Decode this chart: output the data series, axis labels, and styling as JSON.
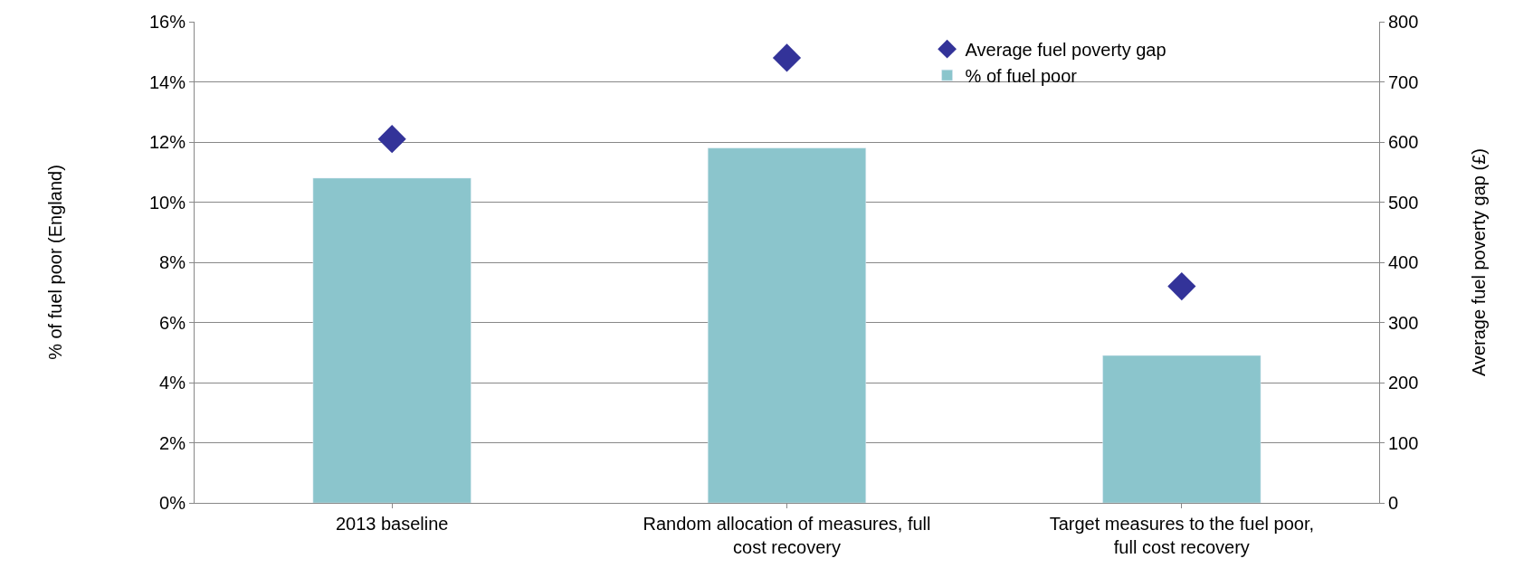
{
  "chart_data": {
    "type": "bar",
    "categories": [
      "2013 baseline",
      "Random allocation of measures, full cost recovery",
      "Target measures to the fuel poor, full cost recovery"
    ],
    "series": [
      {
        "name": "% of fuel poor",
        "color": "#8bc5cc",
        "values": [
          10.8,
          11.8,
          4.9
        ]
      },
      {
        "name": "Average fuel poverty gap",
        "type": "scatter",
        "axis": "y2",
        "color": "#333399",
        "marker": "diamond",
        "values": [
          605,
          740,
          360
        ]
      }
    ],
    "ylabel": "% of fuel poor (England)",
    "y2label": "Average fuel poverty gap (£)",
    "ylim": [
      0,
      16
    ],
    "yticks": [
      {
        "value": 0,
        "label": "0%"
      },
      {
        "value": 2,
        "label": "2%"
      },
      {
        "value": 4,
        "label": "4%"
      },
      {
        "value": 6,
        "label": "6%"
      },
      {
        "value": 8,
        "label": "8%"
      },
      {
        "value": 10,
        "label": "10%"
      },
      {
        "value": 12,
        "label": "12%"
      },
      {
        "value": 14,
        "label": "14%"
      },
      {
        "value": 16,
        "label": "16%"
      }
    ],
    "y2lim": [
      0,
      800
    ],
    "y2ticks": [
      0,
      100,
      200,
      300,
      400,
      500,
      600,
      700,
      800
    ],
    "grid": "y",
    "legend": "top right"
  }
}
